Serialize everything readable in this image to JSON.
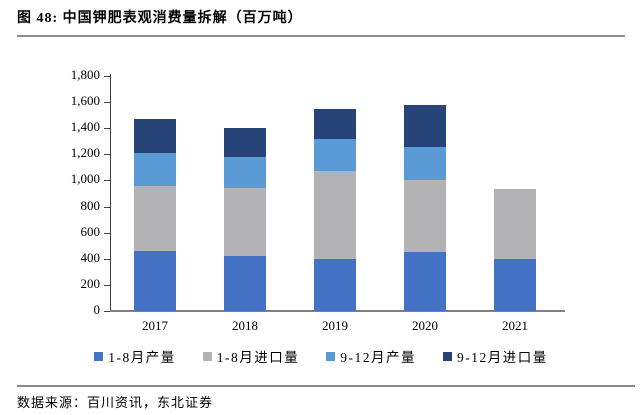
{
  "header": {
    "title": "图 48: 中国钾肥表观消费量拆解（百万吨）"
  },
  "footer": {
    "source": "数据来源：百川资讯，东北证券"
  },
  "colors": {
    "series_blue": "#4472C4",
    "series_gray": "#B3B3B6",
    "series_lightblue": "#5B9BD5",
    "series_darkblue": "#264478",
    "rule_gray": "#8C8C8C",
    "axis_gray": "#808080"
  },
  "chart_data": {
    "type": "bar",
    "stacked": true,
    "title": "中国钾肥表观消费量拆解（百万吨）",
    "xlabel": "",
    "ylabel": "",
    "categories": [
      "2017",
      "2018",
      "2019",
      "2020",
      "2021"
    ],
    "series": [
      {
        "name": "1-8月产量",
        "color": "#4472C4",
        "values": [
          460,
          425,
          400,
          450,
          395
        ]
      },
      {
        "name": "1-8月进口量",
        "color": "#B3B3B6",
        "values": [
          500,
          520,
          675,
          550,
          540
        ]
      },
      {
        "name": "9-12月产量",
        "color": "#5B9BD5",
        "values": [
          250,
          235,
          240,
          255,
          0
        ]
      },
      {
        "name": "9-12月进口量",
        "color": "#264478",
        "values": [
          260,
          225,
          230,
          320,
          0
        ]
      }
    ],
    "totals": [
      1470,
      1405,
      1545,
      1575,
      935
    ],
    "ylim": [
      0,
      1800
    ],
    "ytick_step": 200,
    "ytick_labels": [
      "0",
      "200",
      "400",
      "600",
      "800",
      "1,000",
      "1,200",
      "1,400",
      "1,600",
      "1,800"
    ],
    "grid": false,
    "legend_position": "bottom"
  }
}
